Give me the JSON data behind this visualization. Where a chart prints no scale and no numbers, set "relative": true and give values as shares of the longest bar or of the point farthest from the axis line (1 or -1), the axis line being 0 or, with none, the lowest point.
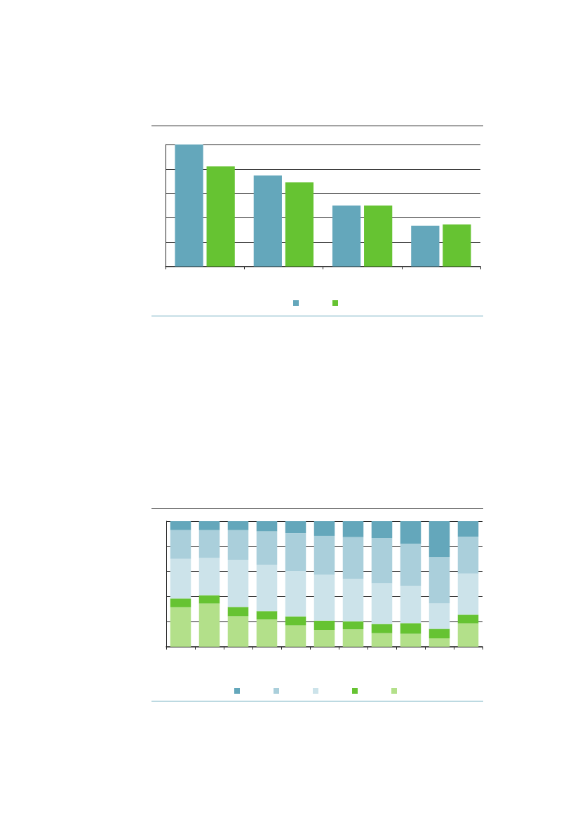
{
  "chart_data": [
    {
      "type": "bar",
      "relative": true,
      "grid": true,
      "categories": [
        null,
        null,
        null,
        null
      ],
      "series": [
        {
          "color": "#64a7bb",
          "values": [
            1,
            0.745,
            0.5,
            0.335
          ]
        },
        {
          "color": "#66c332",
          "values": [
            0.82,
            0.69,
            0.5,
            0.345
          ]
        }
      ]
    },
    {
      "type": "bar",
      "relative": true,
      "stacked": true,
      "grid": true,
      "categories": [
        null,
        null,
        null,
        null,
        null,
        null,
        null,
        null,
        null,
        null,
        null
      ],
      "series": [
        {
          "color": "#b3e08a",
          "values": [
            0.315,
            0.343,
            0.243,
            0.217,
            0.17,
            0.134,
            0.139,
            0.108,
            0.103,
            0.067,
            0.186
          ]
        },
        {
          "color": "#66c332",
          "values": [
            0.069,
            0.067,
            0.074,
            0.067,
            0.071,
            0.074,
            0.064,
            0.073,
            0.085,
            0.076,
            0.069
          ]
        },
        {
          "color": "#cce3ea",
          "values": [
            0.316,
            0.297,
            0.375,
            0.37,
            0.363,
            0.365,
            0.339,
            0.325,
            0.297,
            0.203,
            0.328
          ]
        },
        {
          "color": "#aacfdb",
          "values": [
            0.229,
            0.222,
            0.237,
            0.265,
            0.3,
            0.31,
            0.331,
            0.36,
            0.336,
            0.367,
            0.293
          ]
        },
        {
          "color": "#64a7bb",
          "values": [
            0.071,
            0.071,
            0.071,
            0.081,
            0.096,
            0.117,
            0.127,
            0.134,
            0.179,
            0.287,
            0.124
          ]
        }
      ]
    }
  ]
}
